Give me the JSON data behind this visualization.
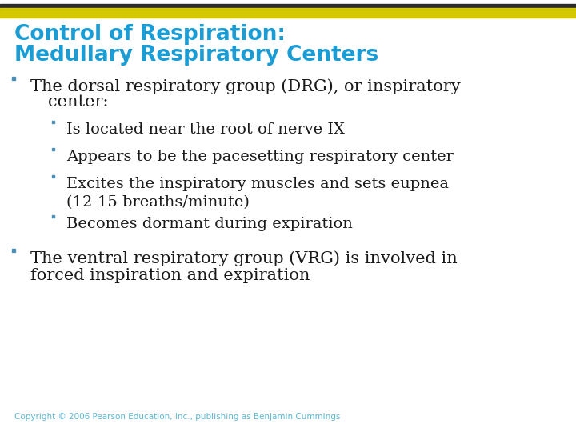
{
  "title_line1": "Control of Respiration:",
  "title_line2": "Medullary Respiratory Centers",
  "title_color": "#1B9CD4",
  "title_fontsize": 19,
  "top_bar_colors": [
    "#2B2B2B",
    "#D4C800"
  ],
  "background_color": "#FFFFFF",
  "text_color": "#1A1A1A",
  "bullet_color": "#4A90B8",
  "main_bullet_fontsize": 15,
  "sub_bullet_fontsize": 14,
  "copyright_text": "Copyright © 2006 Pearson Education, Inc., publishing as Benjamin Cummings",
  "copyright_color": "#5BB8D4",
  "copyright_fontsize": 7.5,
  "main_bullets": [
    {
      "text_line1": "The dorsal respiratory group (DRG), or inspiratory",
      "text_line2": "center:",
      "sub_bullets": [
        "Is located near the root of nerve IX",
        "Appears to be the pacesetting respiratory center",
        "Excites the inspiratory muscles and sets eupnea\n(12-15 breaths/minute)",
        "Becomes dormant during expiration"
      ]
    },
    {
      "text_line1": "The ventral respiratory group (VRG) is involved in",
      "text_line2": "forced inspiration and expiration",
      "sub_bullets": []
    }
  ]
}
